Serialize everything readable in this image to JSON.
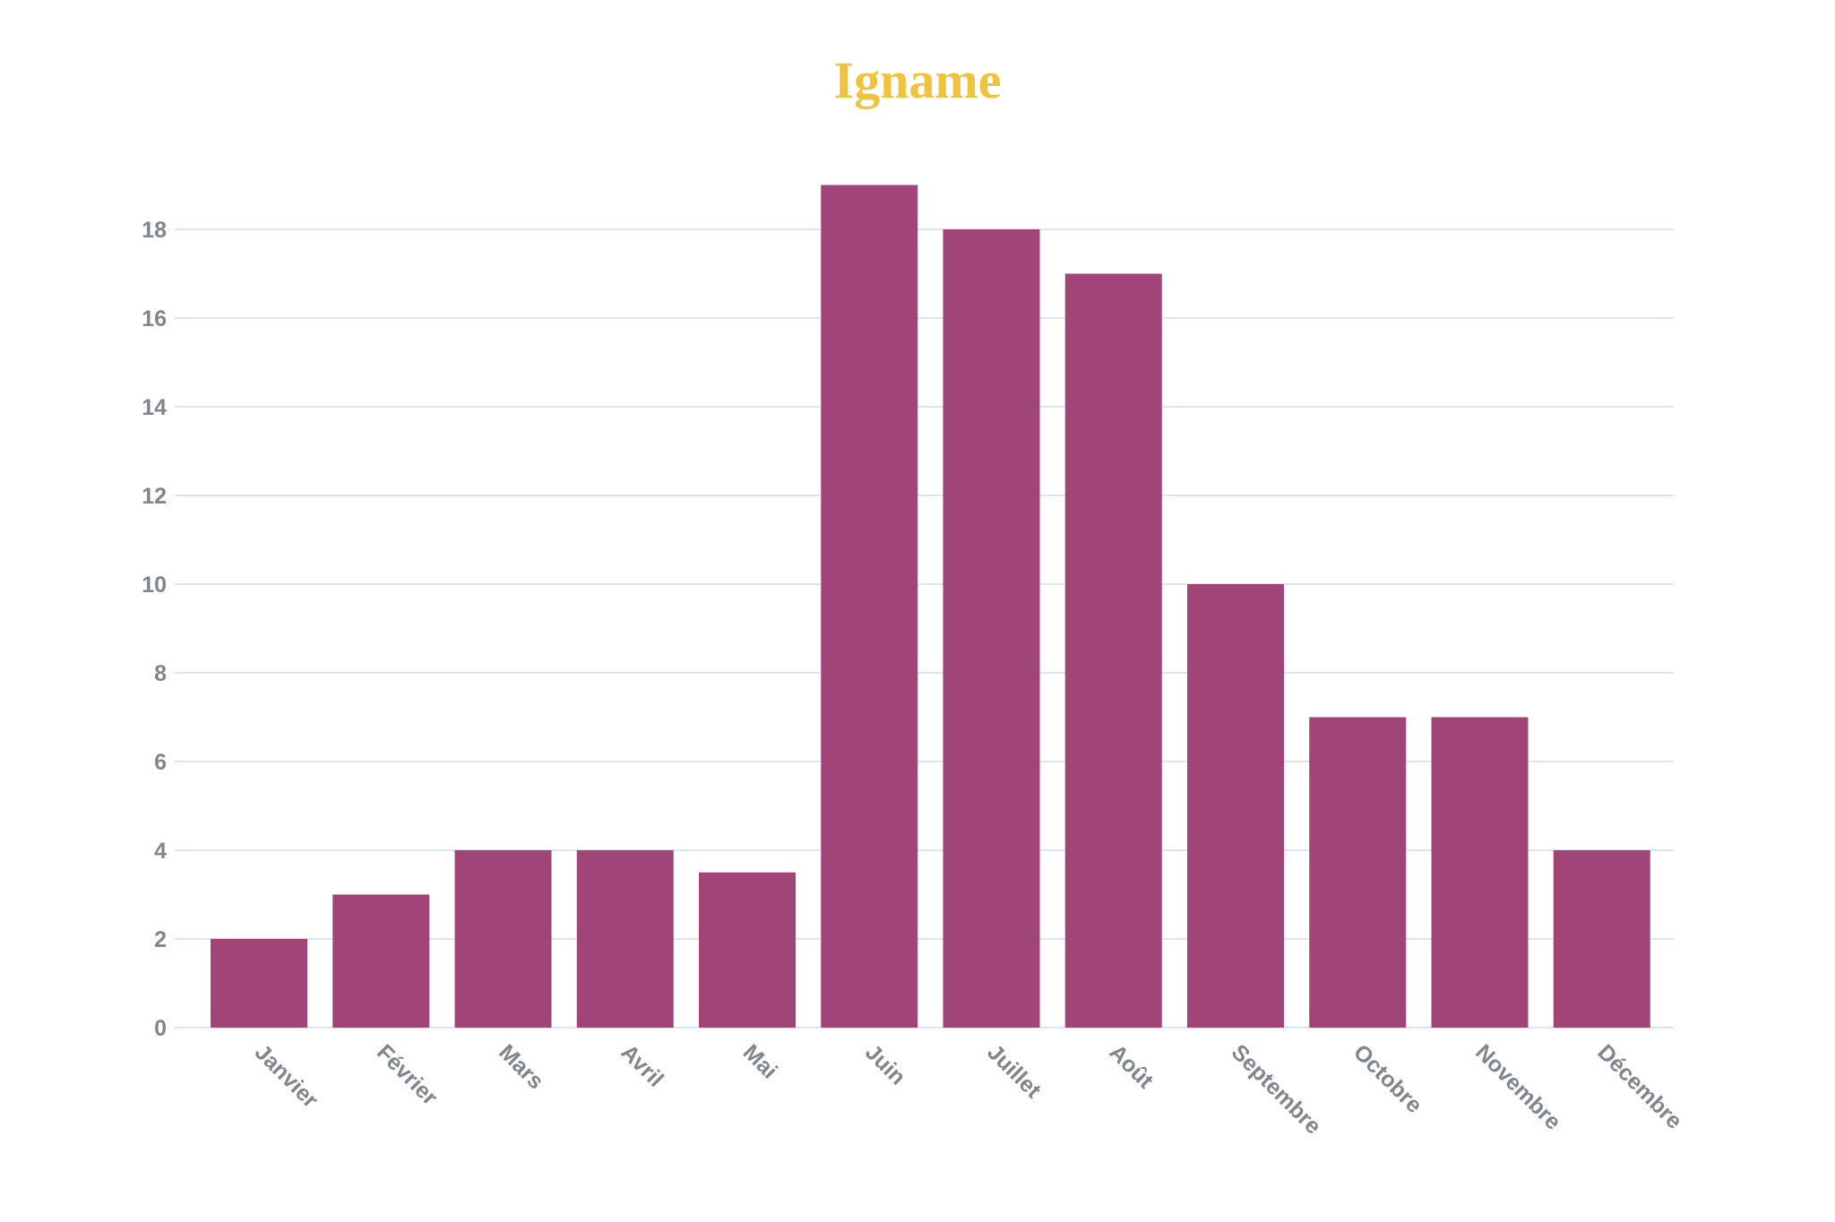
{
  "chart_data": {
    "type": "bar",
    "title": "Igname",
    "xlabel": "",
    "ylabel": "",
    "categories": [
      "Janvier",
      "Février",
      "Mars",
      "Avril",
      "Mai",
      "Juin",
      "Juillet",
      "Août",
      "Septembre",
      "Octobre",
      "Novembre",
      "Décembre"
    ],
    "values": [
      2,
      3,
      4,
      4,
      3.5,
      19,
      18,
      17,
      10,
      7,
      7,
      4
    ],
    "ylim": [
      0,
      19
    ],
    "yticks": [
      0,
      2,
      4,
      6,
      8,
      10,
      12,
      14,
      16,
      18
    ],
    "grid": true,
    "legend": "none",
    "colors": {
      "bar": "#A14478",
      "title": "#EFC33C",
      "grid": "#DCE6EF",
      "tick_label": "#7F868D"
    }
  }
}
